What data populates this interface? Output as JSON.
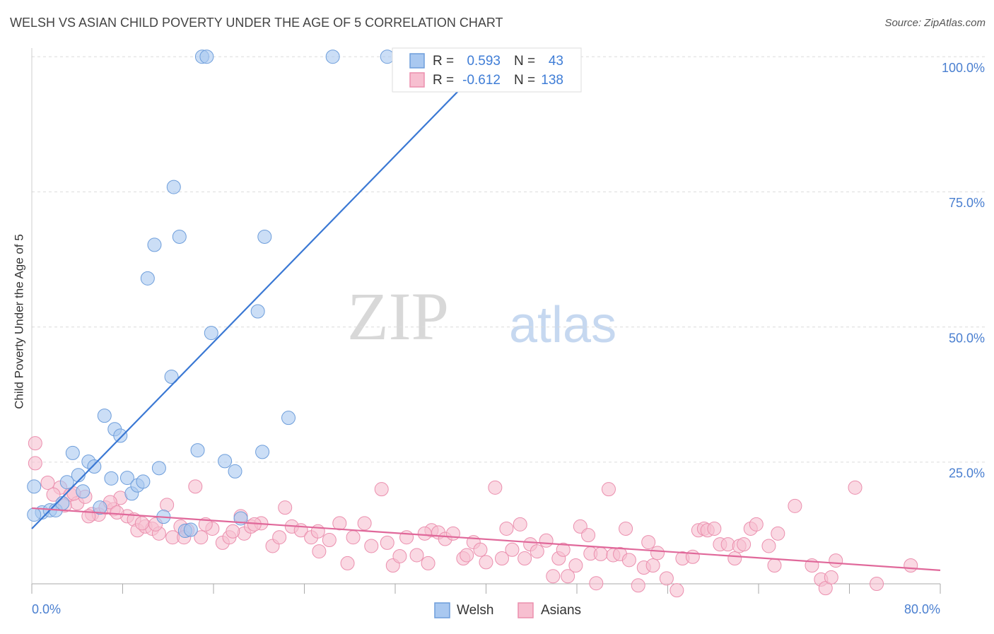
{
  "chart_data": {
    "type": "scatter",
    "title": "WELSH VS ASIAN CHILD POVERTY UNDER THE AGE OF 5 CORRELATION CHART",
    "source": "Source: ZipAtlas.com",
    "y_label": "Child Poverty Under the Age of 5",
    "watermark": [
      "ZIP",
      "atlas"
    ],
    "xlim": [
      0,
      80
    ],
    "ylim": [
      2.5,
      101.6
    ],
    "xticks": [
      {
        "value": 0,
        "label": "0.0%"
      },
      {
        "value": 80,
        "label": "80.0%"
      }
    ],
    "xminor_ticks": [
      8,
      16,
      24,
      32,
      40,
      48,
      56,
      64,
      72
    ],
    "yticks": [
      {
        "value": 25,
        "label": "25.0%"
      },
      {
        "value": 50,
        "label": "50.0%"
      },
      {
        "value": 75,
        "label": "75.0%"
      },
      {
        "value": 100,
        "label": "100.0%"
      }
    ],
    "grid": true,
    "legend_labels": {
      "r": "R =",
      "n": "N ="
    },
    "series": [
      {
        "name": "Welsh",
        "color": "#a9c8f0",
        "edge": "#6e9edb",
        "line_color": "#3a78d4",
        "r": 0.593,
        "n": 43,
        "x": [
          0.2,
          0.9,
          1.6,
          2.1,
          2.7,
          3.1,
          3.6,
          4.1,
          4.5,
          5.0,
          5.5,
          6.0,
          6.4,
          7.0,
          7.3,
          7.8,
          8.4,
          8.8,
          9.3,
          9.8,
          10.2,
          10.8,
          11.2,
          11.6,
          12.5,
          12.3,
          13.0,
          13.5,
          14.0,
          14.6,
          15.0,
          15.4,
          15.8,
          17.0,
          17.9,
          18.4,
          19.9,
          20.3,
          20.5,
          22.6,
          26.5,
          31.3,
          0.2
        ],
        "y": [
          20.5,
          15.7,
          16.1,
          16.1,
          17.4,
          21.3,
          26.7,
          22.6,
          19.6,
          25.1,
          24.2,
          16.6,
          33.6,
          22.0,
          31.1,
          29.9,
          22.1,
          19.2,
          20.7,
          21.4,
          59.0,
          65.2,
          23.9,
          14.9,
          75.9,
          40.8,
          66.7,
          12.3,
          12.5,
          27.2,
          100,
          100,
          48.9,
          25.2,
          23.3,
          14.6,
          52.9,
          26.9,
          66.7,
          33.2,
          100,
          100,
          15.3
        ],
        "trend": {
          "x": [
            0,
            40.5
          ],
          "y": [
            12.7,
            100
          ]
        }
      },
      {
        "name": "Asians",
        "color": "#f7bfd0",
        "edge": "#eb8fae",
        "line_color": "#e0689a",
        "r": -0.612,
        "n": 138,
        "x": [
          0.3,
          0.3,
          1.4,
          2.5,
          3.4,
          4.0,
          4.7,
          5.3,
          5.9,
          6.5,
          7.2,
          7.8,
          8.4,
          9.0,
          9.3,
          10.0,
          10.6,
          11.2,
          11.9,
          12.4,
          13.1,
          13.7,
          14.4,
          14.9,
          15.9,
          16.8,
          17.4,
          18.4,
          18.7,
          19.3,
          20.2,
          21.2,
          21.8,
          22.3,
          22.9,
          23.7,
          24.6,
          25.3,
          26.2,
          27.1,
          27.8,
          28.3,
          29.3,
          29.9,
          30.8,
          31.3,
          31.8,
          32.4,
          33.0,
          33.9,
          34.9,
          35.2,
          35.8,
          36.4,
          37.1,
          38.0,
          38.3,
          38.9,
          39.5,
          40.0,
          40.8,
          41.4,
          41.8,
          42.3,
          43.0,
          43.4,
          43.9,
          44.5,
          45.3,
          45.9,
          46.4,
          46.8,
          47.2,
          47.9,
          48.3,
          49.0,
          49.2,
          49.7,
          50.1,
          50.8,
          51.2,
          51.8,
          52.3,
          52.6,
          53.4,
          53.9,
          54.3,
          54.7,
          55.1,
          55.9,
          56.8,
          57.3,
          58.2,
          58.7,
          59.2,
          59.5,
          60.1,
          60.6,
          61.3,
          61.9,
          62.3,
          62.7,
          63.3,
          63.8,
          64.9,
          65.7,
          65.4,
          67.2,
          68.7,
          69.5,
          69.9,
          70.4,
          70.8,
          72.5,
          74.4,
          77.4,
          1.9,
          2.9,
          3.7,
          5.0,
          6.9,
          7.5,
          9.7,
          10.9,
          13.4,
          15.3,
          17.7,
          19.6,
          25.2,
          34.6
        ],
        "y": [
          28.5,
          24.8,
          21.2,
          20.3,
          19.0,
          17.4,
          18.6,
          15.4,
          15.3,
          16.6,
          16.3,
          18.4,
          15.0,
          14.4,
          12.4,
          13.1,
          12.7,
          11.8,
          17.1,
          11.1,
          13.1,
          12.4,
          20.5,
          11.1,
          12.7,
          10.1,
          11.1,
          15.0,
          11.8,
          13.1,
          13.7,
          9.5,
          11.1,
          16.6,
          13.1,
          12.4,
          11.1,
          8.5,
          10.6,
          13.7,
          6.3,
          11.1,
          13.7,
          9.5,
          20.0,
          10.1,
          5.9,
          7.6,
          11.1,
          7.8,
          6.3,
          12.4,
          12.0,
          10.8,
          11.8,
          7.2,
          7.8,
          10.2,
          8.8,
          6.5,
          20.3,
          7.2,
          12.7,
          8.8,
          13.5,
          7.2,
          9.8,
          8.5,
          10.5,
          3.9,
          7.2,
          8.8,
          3.9,
          5.9,
          13.1,
          11.5,
          8.1,
          2.6,
          8.0,
          20.0,
          7.8,
          8.0,
          12.7,
          6.9,
          2.2,
          5.5,
          10.2,
          5.9,
          8.2,
          3.5,
          1.3,
          7.2,
          7.5,
          12.4,
          12.7,
          12.4,
          12.7,
          9.8,
          9.8,
          7.2,
          9.5,
          9.8,
          12.7,
          13.5,
          9.5,
          11.8,
          5.9,
          16.9,
          5.9,
          3.3,
          1.7,
          3.7,
          6.8,
          20.3,
          2.5,
          5.9,
          19.0,
          17.0,
          19.2,
          15.0,
          17.6,
          15.7,
          13.7,
          13.5,
          11.1,
          13.5,
          12.2,
          13.5,
          12.2,
          11.8
        ],
        "trend": {
          "x": [
            0,
            80
          ],
          "y": [
            16.5,
            5.0
          ]
        }
      }
    ]
  }
}
